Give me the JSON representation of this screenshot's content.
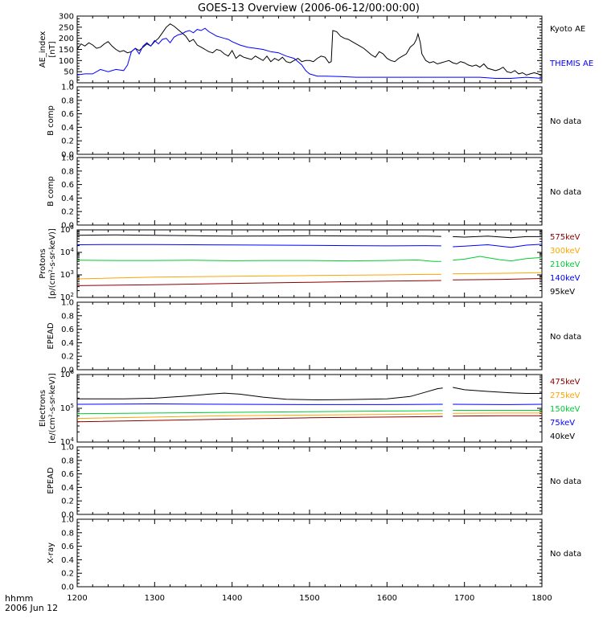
{
  "title": "GOES-13 Overview (2006-06-12/00:00:00)",
  "x_axis": {
    "ticks": [
      "1200",
      "1300",
      "1400",
      "1500",
      "1600",
      "1700",
      "1800"
    ],
    "label_line1": "hhmm",
    "label_line2": "2006 Jun 12"
  },
  "chart_data": [
    {
      "id": "ae",
      "type": "line",
      "ylabel": [
        "AE_index",
        "[nT]"
      ],
      "ylim": [
        0,
        300
      ],
      "yticks": [
        "0",
        "50",
        "100",
        "150",
        "200",
        "250",
        "300"
      ],
      "legend": [
        {
          "label": "Kyoto AE",
          "color": "#000000"
        },
        {
          "label": "THEMIS AE",
          "color": "#0000ff"
        }
      ],
      "series": [
        {
          "name": "Kyoto AE",
          "color": "#000000",
          "x": [
            1200,
            1205,
            1210,
            1215,
            1220,
            1225,
            1230,
            1235,
            1240,
            1245,
            1250,
            1255,
            1260,
            1265,
            1270,
            1275,
            1280,
            1285,
            1290,
            1295,
            1300,
            1305,
            1310,
            1315,
            1320,
            1325,
            1330,
            1335,
            1340,
            1345,
            1350,
            1355,
            1360,
            1365,
            1370,
            1375,
            1380,
            1385,
            1390,
            1395,
            1400,
            1405,
            1410,
            1415,
            1420,
            1425,
            1430,
            1435,
            1440,
            1445,
            1450,
            1455,
            1460,
            1465,
            1470,
            1475,
            1480,
            1485,
            1490,
            1495,
            1500,
            1505,
            1510,
            1515,
            1520,
            1525,
            1528,
            1530,
            1535,
            1540,
            1545,
            1550,
            1555,
            1560,
            1565,
            1570,
            1575,
            1580,
            1585,
            1590,
            1595,
            1600,
            1605,
            1610,
            1615,
            1620,
            1625,
            1630,
            1635,
            1638,
            1640,
            1643,
            1645,
            1650,
            1655,
            1660,
            1665,
            1670,
            1675,
            1680,
            1685,
            1690,
            1695,
            1700,
            1705,
            1710,
            1715,
            1720,
            1725,
            1730,
            1735,
            1740,
            1745,
            1750,
            1755,
            1760,
            1765,
            1770,
            1775,
            1780,
            1785,
            1790,
            1795,
            1800
          ],
          "y": [
            150,
            175,
            165,
            180,
            170,
            155,
            160,
            175,
            185,
            165,
            150,
            140,
            145,
            135,
            140,
            155,
            145,
            160,
            175,
            165,
            185,
            200,
            225,
            250,
            265,
            255,
            240,
            225,
            210,
            185,
            195,
            170,
            160,
            150,
            140,
            135,
            150,
            145,
            130,
            120,
            145,
            110,
            125,
            115,
            110,
            105,
            120,
            110,
            100,
            120,
            95,
            110,
            100,
            115,
            95,
            90,
            100,
            110,
            95,
            100,
            100,
            95,
            110,
            120,
            115,
            90,
            95,
            235,
            230,
            210,
            200,
            195,
            185,
            175,
            165,
            155,
            140,
            125,
            115,
            140,
            130,
            110,
            100,
            95,
            110,
            120,
            130,
            160,
            175,
            195,
            220,
            180,
            130,
            100,
            90,
            95,
            85,
            90,
            95,
            100,
            90,
            85,
            95,
            90,
            80,
            75,
            80,
            70,
            85,
            65,
            60,
            55,
            60,
            70,
            50,
            45,
            55,
            40,
            45,
            35,
            40,
            45,
            40,
            30
          ]
        },
        {
          "name": "THEMIS AE",
          "color": "#0000ff",
          "x": [
            1200,
            1210,
            1220,
            1230,
            1240,
            1250,
            1260,
            1265,
            1270,
            1275,
            1280,
            1285,
            1290,
            1295,
            1300,
            1305,
            1310,
            1315,
            1320,
            1325,
            1330,
            1335,
            1340,
            1345,
            1350,
            1355,
            1360,
            1365,
            1370,
            1375,
            1380,
            1385,
            1390,
            1395,
            1400,
            1410,
            1420,
            1430,
            1440,
            1450,
            1460,
            1470,
            1480,
            1490,
            1495,
            1500,
            1510,
            1520,
            1540,
            1560,
            1580,
            1600,
            1620,
            1640,
            1660,
            1680,
            1700,
            1720,
            1740,
            1760,
            1780,
            1800
          ],
          "y": [
            35,
            40,
            40,
            60,
            50,
            60,
            55,
            80,
            140,
            155,
            130,
            165,
            180,
            165,
            190,
            175,
            195,
            200,
            180,
            205,
            215,
            220,
            230,
            235,
            225,
            240,
            235,
            245,
            230,
            220,
            210,
            205,
            200,
            195,
            185,
            170,
            160,
            155,
            150,
            140,
            135,
            120,
            110,
            80,
            55,
            40,
            30,
            30,
            28,
            25,
            25,
            25,
            25,
            25,
            25,
            25,
            25,
            25,
            20,
            20,
            25,
            20
          ]
        }
      ]
    },
    {
      "id": "bcomp1",
      "type": "line",
      "ylabel": [
        "B comp"
      ],
      "ylim": [
        0,
        1
      ],
      "yticks": [
        "0.0",
        "0.2",
        "0.4",
        "0.6",
        "0.8",
        "1.0"
      ],
      "no_data": "No data",
      "series": []
    },
    {
      "id": "bcomp2",
      "type": "line",
      "ylabel": [
        "B comp"
      ],
      "ylim": [
        0,
        1
      ],
      "yticks": [
        "0.0",
        "0.2",
        "0.4",
        "0.6",
        "0.8",
        "1.0"
      ],
      "no_data": "No data",
      "series": []
    },
    {
      "id": "protons",
      "type": "line",
      "log": true,
      "ylabel": [
        "Protons",
        "[p/(cm²-s-sr-keV)]"
      ],
      "ylim_exp": [
        2,
        5
      ],
      "yticks_exp": [
        2,
        3,
        4,
        5
      ],
      "legend": [
        {
          "label": "575keV",
          "color": "#8b0000"
        },
        {
          "label": "300keV",
          "color": "#ffa500"
        },
        {
          "label": "210keV",
          "color": "#00cc33"
        },
        {
          "label": "140keV",
          "color": "#0000ff"
        },
        {
          "label": "95keV",
          "color": "#000000"
        }
      ],
      "gap": [
        1672,
        1684
      ],
      "series": [
        {
          "name": "95keV",
          "color": "#000000",
          "x": [
            1200,
            1250,
            1300,
            1350,
            1400,
            1450,
            1500,
            1550,
            1600,
            1650,
            1670,
            1685,
            1700,
            1730,
            1760,
            1780,
            1800
          ],
          "y_exp": [
            4.76,
            4.78,
            4.76,
            4.74,
            4.72,
            4.73,
            4.74,
            4.73,
            4.72,
            4.72,
            4.71,
            4.7,
            4.68,
            4.72,
            4.65,
            4.7,
            4.7
          ]
        },
        {
          "name": "140keV",
          "color": "#0000ff",
          "x": [
            1200,
            1250,
            1300,
            1350,
            1400,
            1450,
            1500,
            1550,
            1600,
            1650,
            1670,
            1685,
            1700,
            1730,
            1760,
            1780,
            1800
          ],
          "y_exp": [
            4.34,
            4.35,
            4.35,
            4.34,
            4.33,
            4.32,
            4.31,
            4.3,
            4.29,
            4.3,
            4.29,
            4.25,
            4.28,
            4.34,
            4.22,
            4.32,
            4.36
          ]
        },
        {
          "name": "210keV",
          "color": "#00cc33",
          "x": [
            1200,
            1250,
            1300,
            1350,
            1400,
            1450,
            1500,
            1550,
            1600,
            1640,
            1660,
            1670,
            1685,
            1700,
            1720,
            1745,
            1760,
            1780,
            1800
          ],
          "y_exp": [
            3.65,
            3.64,
            3.64,
            3.65,
            3.63,
            3.64,
            3.64,
            3.62,
            3.64,
            3.66,
            3.6,
            3.6,
            3.65,
            3.7,
            3.82,
            3.68,
            3.62,
            3.72,
            3.78
          ]
        },
        {
          "name": "300keV",
          "color": "#ffa500",
          "x": [
            1200,
            1300,
            1400,
            1500,
            1600,
            1650,
            1670,
            1685,
            1750,
            1800
          ],
          "y_exp": [
            2.82,
            2.9,
            2.94,
            2.97,
            3.0,
            3.02,
            3.02,
            3.05,
            3.07,
            3.1
          ]
        },
        {
          "name": "575keV",
          "color": "#8b0000",
          "x": [
            1200,
            1300,
            1400,
            1500,
            1600,
            1650,
            1670,
            1685,
            1750,
            1800
          ],
          "y_exp": [
            2.52,
            2.56,
            2.62,
            2.67,
            2.72,
            2.74,
            2.75,
            2.78,
            2.8,
            2.84
          ]
        }
      ]
    },
    {
      "id": "epead1",
      "type": "line",
      "ylabel": [
        "EPEAD"
      ],
      "ylim": [
        0,
        1
      ],
      "yticks": [
        "0.0",
        "0.2",
        "0.4",
        "0.6",
        "0.8",
        "1.0"
      ],
      "no_data": "No data",
      "series": []
    },
    {
      "id": "electrons",
      "type": "line",
      "log": true,
      "ylabel": [
        "Electrons",
        "[e/(cm²-s-sr-keV)]"
      ],
      "ylim_exp": [
        4,
        6
      ],
      "yticks_exp": [
        4,
        5,
        6
      ],
      "legend": [
        {
          "label": "475keV",
          "color": "#8b0000"
        },
        {
          "label": "275keV",
          "color": "#ffa500"
        },
        {
          "label": "150keV",
          "color": "#00cc33"
        },
        {
          "label": "75keV",
          "color": "#0000ff"
        },
        {
          "label": "40keV",
          "color": "#000000"
        }
      ],
      "gap": [
        1672,
        1684
      ],
      "series": [
        {
          "name": "40keV",
          "color": "#000000",
          "x": [
            1200,
            1260,
            1300,
            1340,
            1370,
            1390,
            1410,
            1440,
            1470,
            1510,
            1550,
            1600,
            1630,
            1650,
            1665,
            1672,
            1685,
            1700,
            1730,
            1760,
            1780,
            1800
          ],
          "y_exp": [
            5.28,
            5.28,
            5.3,
            5.36,
            5.42,
            5.45,
            5.42,
            5.33,
            5.27,
            5.25,
            5.26,
            5.28,
            5.35,
            5.48,
            5.58,
            5.6,
            5.62,
            5.55,
            5.5,
            5.46,
            5.44,
            5.44
          ]
        },
        {
          "name": "75keV",
          "color": "#0000ff",
          "x": [
            1200,
            1300,
            1400,
            1500,
            1600,
            1672,
            1685,
            1750,
            1800
          ],
          "y_exp": [
            5.12,
            5.13,
            5.12,
            5.11,
            5.11,
            5.12,
            5.12,
            5.11,
            5.12
          ]
        },
        {
          "name": "150keV",
          "color": "#00cc33",
          "x": [
            1200,
            1300,
            1400,
            1500,
            1600,
            1672,
            1685,
            1750,
            1800
          ],
          "y_exp": [
            4.84,
            4.86,
            4.88,
            4.9,
            4.92,
            4.93,
            4.94,
            4.94,
            4.94
          ]
        },
        {
          "name": "275keV",
          "color": "#ffa500",
          "x": [
            1200,
            1300,
            1400,
            1500,
            1600,
            1672,
            1685,
            1750,
            1800
          ],
          "y_exp": [
            4.7,
            4.74,
            4.78,
            4.8,
            4.82,
            4.84,
            4.85,
            4.86,
            4.86
          ]
        },
        {
          "name": "475keV",
          "color": "#8b0000",
          "x": [
            1200,
            1300,
            1400,
            1500,
            1600,
            1672,
            1685,
            1750,
            1800
          ],
          "y_exp": [
            4.6,
            4.64,
            4.68,
            4.72,
            4.74,
            4.76,
            4.77,
            4.78,
            4.78
          ]
        }
      ]
    },
    {
      "id": "epead2",
      "type": "line",
      "ylabel": [
        "EPEAD"
      ],
      "ylim": [
        0,
        1
      ],
      "yticks": [
        "0.0",
        "0.2",
        "0.4",
        "0.6",
        "0.8",
        "1.0"
      ],
      "no_data": "No data",
      "series": []
    },
    {
      "id": "xray",
      "type": "line",
      "ylabel": [
        "X-ray"
      ],
      "ylim": [
        0,
        1
      ],
      "yticks": [
        "0.0",
        "0.2",
        "0.4",
        "0.6",
        "0.8",
        "1.0"
      ],
      "no_data": "No data",
      "series": []
    }
  ]
}
